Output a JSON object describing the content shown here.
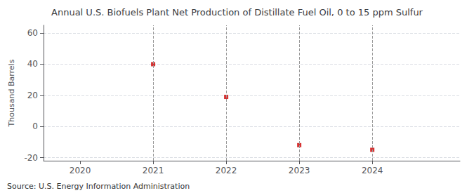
{
  "chart_data": {
    "type": "scatter",
    "title": "Annual U.S. Biofuels Plant Net Production of Distillate Fuel Oil, 0 to 15 ppm Sulfur",
    "ylabel": "Thousand Barrels",
    "annotations": [
      "Source: U.S. Energy Information Administration"
    ],
    "x": [
      2021,
      2022,
      2023,
      2024
    ],
    "values": [
      40,
      19,
      -12,
      -15
    ],
    "color": "#cc0000",
    "marker": "square",
    "xlim": [
      2019.5,
      2025.2
    ],
    "xticks": [
      2020,
      2021,
      2022,
      2023,
      2024
    ],
    "ylim": [
      -22,
      65
    ],
    "yticks": [
      -20,
      0,
      20,
      40,
      60
    ],
    "grid": true
  }
}
